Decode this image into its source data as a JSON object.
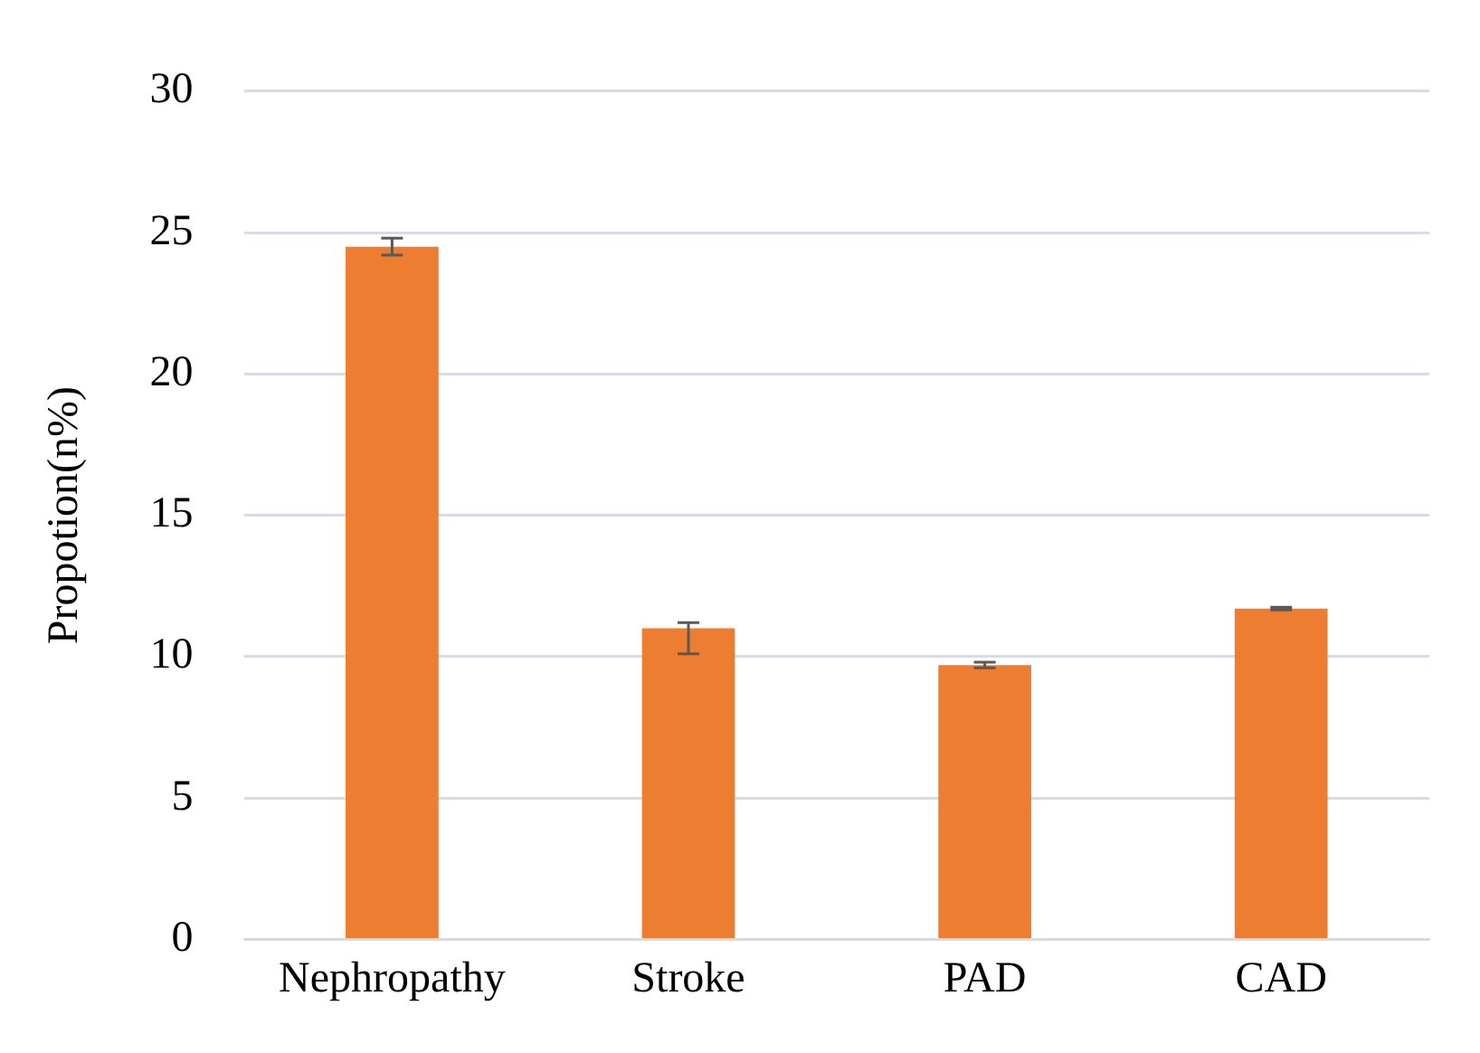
{
  "chart_data": {
    "type": "bar",
    "ylabel": "Propotion(n%)",
    "categories": [
      "Nephropathy",
      "Stroke",
      "PAD",
      "CAD"
    ],
    "values": [
      24.5,
      11.0,
      9.7,
      11.7
    ],
    "errors": [
      0.3,
      [
        10.1,
        11.2
      ],
      0.1,
      0.05
    ],
    "color": "#ed7d31",
    "ylim": [
      0,
      30
    ],
    "yticks": [
      0,
      5,
      10,
      15,
      20,
      25,
      30
    ],
    "grid": "y",
    "legend": false
  }
}
